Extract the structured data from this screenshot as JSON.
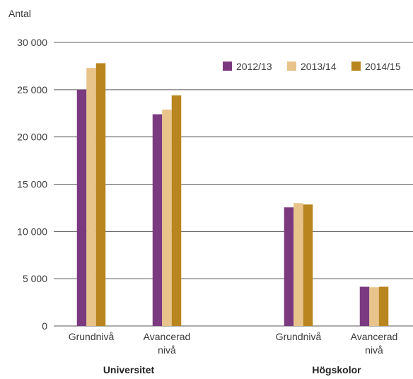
{
  "chart_data": {
    "type": "bar",
    "ylabel": "Antal",
    "ylim": [
      0,
      30000
    ],
    "yticks": [
      0,
      5000,
      10000,
      15000,
      20000,
      25000,
      30000
    ],
    "ytick_labels": [
      "0",
      "5 000",
      "10 000",
      "15 000",
      "20 000",
      "25 000",
      "30 000"
    ],
    "grid": true,
    "legend_position": "top-right",
    "categories": [
      {
        "label_lines": [
          "Grundnivå"
        ],
        "group": "Universitet"
      },
      {
        "label_lines": [
          "Avancerad",
          "nivå"
        ],
        "group": "Universitet"
      },
      {
        "label_lines": [
          "Grundnivå"
        ],
        "group": "Högskolor"
      },
      {
        "label_lines": [
          "Avancerad",
          "nivå"
        ],
        "group": "Högskolor"
      }
    ],
    "groups": [
      "Universitet",
      "Högskolor"
    ],
    "series": [
      {
        "name": "2012/13",
        "color": "#7b3a7f",
        "values": [
          25000,
          22400,
          12550,
          4150
        ]
      },
      {
        "name": "2013/14",
        "color": "#e8c48b",
        "values": [
          27300,
          22900,
          13000,
          4100
        ]
      },
      {
        "name": "2014/15",
        "color": "#b8851e",
        "values": [
          27800,
          24400,
          12850,
          4150
        ]
      }
    ]
  }
}
